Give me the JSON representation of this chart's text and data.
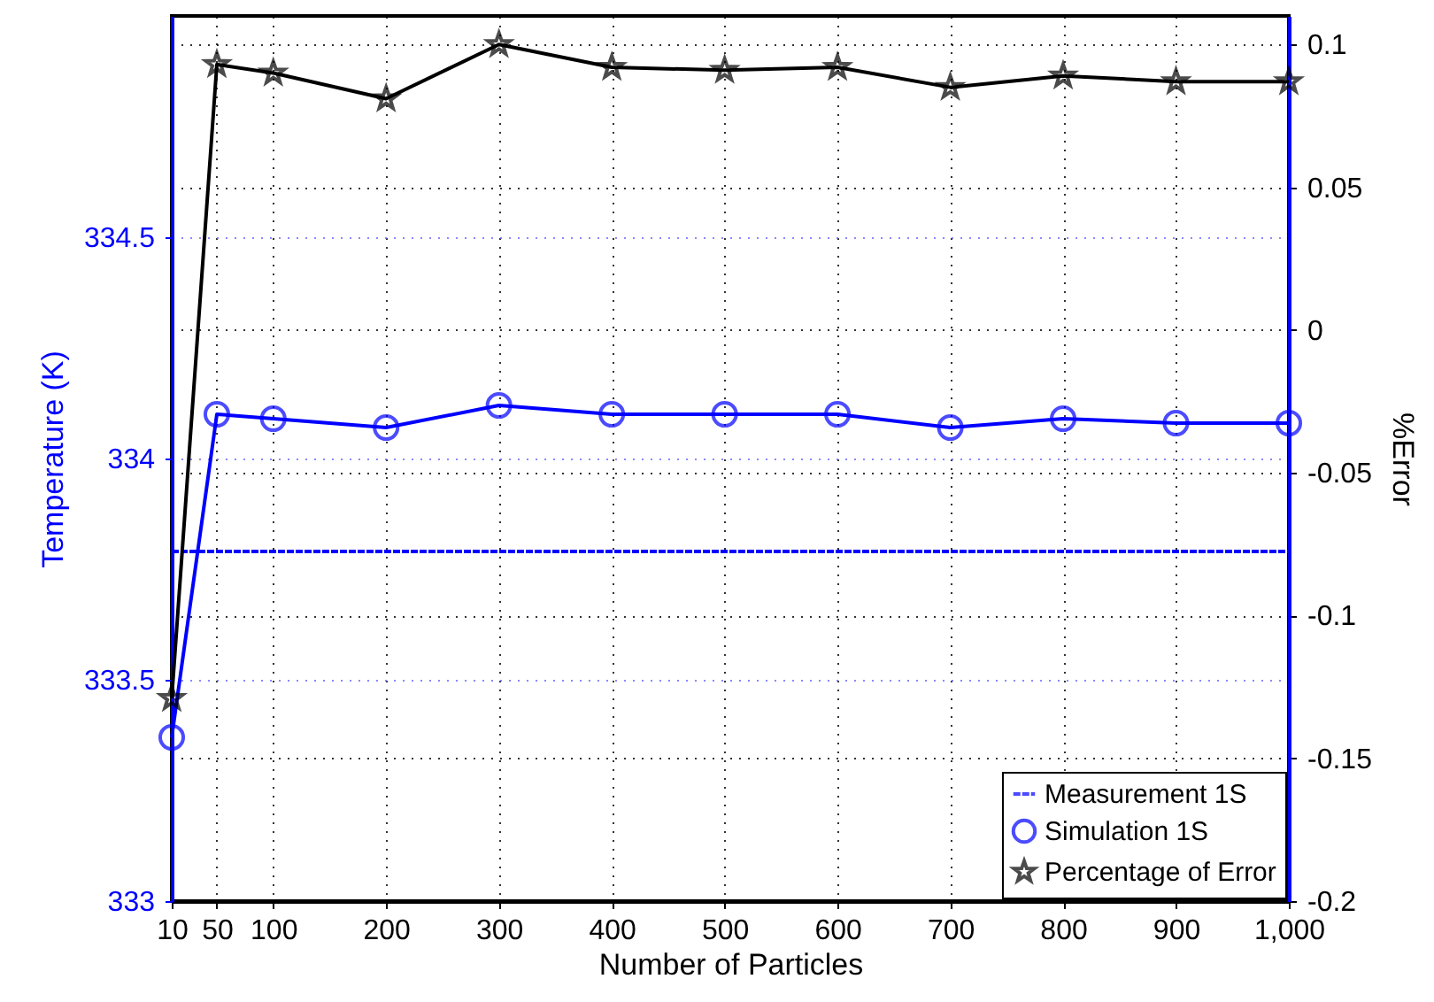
{
  "chart_data": {
    "type": "line",
    "xlabel": "Number of Particles",
    "ylabel": "Temperature (K)",
    "y2label": "%Error",
    "xlim": [
      10,
      1000
    ],
    "xticks": [
      10,
      50,
      100,
      200,
      300,
      400,
      500,
      600,
      700,
      800,
      900,
      {
        "value": 1000,
        "label": "1,000"
      }
    ],
    "ylim": [
      333,
      335
    ],
    "yticks": [
      333,
      333.5,
      334,
      334.5
    ],
    "y2lim": [
      -0.2,
      0.11
    ],
    "y2ticks": [
      -0.2,
      -0.15,
      -0.1,
      -0.05,
      0,
      0.05,
      0.1
    ],
    "grid": true,
    "legend": "bottom right",
    "series": [
      {
        "name": "Measurement 1S",
        "color": "#0000ff",
        "marker": "none",
        "line_style": "dashed",
        "x": [
          10,
          1000
        ],
        "values": [
          333.79,
          333.79
        ]
      },
      {
        "name": "Simulation 1S",
        "color": "#0000ff",
        "marker": "circle",
        "line_style": "solid",
        "x": [
          10,
          50,
          100,
          200,
          300,
          400,
          500,
          600,
          700,
          800,
          900,
          1000
        ],
        "values": [
          333.37,
          334.1,
          334.09,
          334.07,
          334.12,
          334.1,
          334.1,
          334.1,
          334.07,
          334.09,
          334.08,
          334.08
        ]
      },
      {
        "name": "Percentage of Error",
        "color": "#000000",
        "marker": "star",
        "line_style": "solid",
        "axis": "y2",
        "x": [
          10,
          50,
          100,
          200,
          300,
          400,
          500,
          600,
          700,
          800,
          900,
          1000
        ],
        "values": [
          -0.129,
          0.093,
          0.09,
          0.081,
          0.1,
          0.092,
          0.091,
          0.092,
          0.085,
          0.089,
          0.087,
          0.087
        ]
      }
    ]
  }
}
